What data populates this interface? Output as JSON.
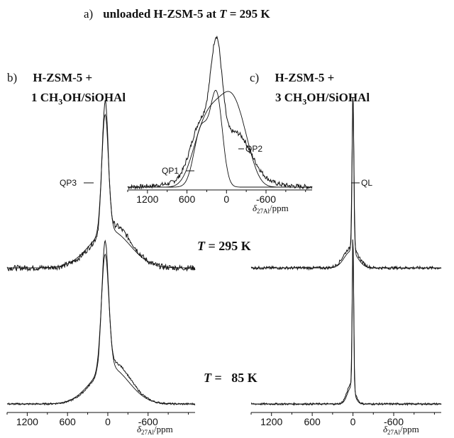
{
  "title": {
    "letter": "a)",
    "text_pre": "unloaded  H-ZSM-5 at ",
    "t_symbol": "T",
    "text_post": " = 295 K"
  },
  "panel_b": {
    "letter": "b)",
    "line1": "H-ZSM-5 +",
    "line2_pre": "1 CH",
    "line2_sub": "3",
    "line2_post": "OH/SiOHAl"
  },
  "panel_c": {
    "letter": "c)",
    "line1": "H-ZSM-5 +",
    "line2_pre": "3 CH",
    "line2_sub": "3",
    "line2_post": "OH/SiOHAl"
  },
  "temps": {
    "t_symbol": "T",
    "t295": " = 295 K",
    "t85": " =   85 K"
  },
  "axis": {
    "ticks": [
      "1200",
      "600",
      "0",
      "-600"
    ],
    "label_delta": "δ",
    "label_sub": "27Al",
    "label_unit": "/ppm"
  },
  "annotations": {
    "qp1": "QP1",
    "qp2": "QP2",
    "qp3": "QP3",
    "ql": "QL"
  },
  "colors": {
    "line": "#111111",
    "background": "#ffffff"
  },
  "chart_data": [
    {
      "panel": "a",
      "type": "line",
      "title": "unloaded  H-ZSM-5 at T = 295 K",
      "x_label": "δ27Al/ppm",
      "x_range": [
        1500,
        -1300
      ],
      "x_reversed": true,
      "x_ticks": [
        1200,
        600,
        0,
        -600
      ],
      "series": [
        {
          "role": "experimental",
          "components": [
            {
              "center": 150,
              "width": 90,
              "amp": 0.6
            },
            {
              "center": 400,
              "width": 200,
              "amp": 0.45
            },
            {
              "center": -200,
              "width": 250,
              "amp": 0.45
            }
          ]
        },
        {
          "role": "fit-QP1",
          "components": [
            {
              "center": 150,
              "width": 90,
              "amp": 0.6
            },
            {
              "center": 380,
              "width": 110,
              "amp": 0.4
            }
          ]
        },
        {
          "role": "fit-QP2",
          "components": [
            {
              "center": 80,
              "width": 420,
              "amp": 0.7
            }
          ]
        }
      ],
      "labels": [
        "QP1",
        "QP2"
      ]
    },
    {
      "panel": "b",
      "type": "line",
      "x_label": "δ27Al/ppm",
      "x_range": [
        1500,
        -1300
      ],
      "x_reversed": true,
      "x_ticks": [
        1200,
        600,
        0,
        -600
      ],
      "spectra": [
        {
          "temperature_K": 295,
          "label": "QP3",
          "peak_center": 40,
          "narrow_width": 45,
          "broad_width": 300
        },
        {
          "temperature_K": 85,
          "peak_center": 40,
          "narrow_width": 50,
          "broad_width": 280
        }
      ]
    },
    {
      "panel": "c",
      "type": "line",
      "x_label": "δ27Al/ppm",
      "x_range": [
        1500,
        -1300
      ],
      "x_reversed": true,
      "x_ticks": [
        1200,
        600,
        0,
        -600
      ],
      "spectra": [
        {
          "temperature_K": 295,
          "label": "QL",
          "peak_center": 0,
          "narrow_width": 12,
          "broad_width": 110
        },
        {
          "temperature_K": 85,
          "peak_center": 0,
          "narrow_width": 10,
          "broad_width": 60
        }
      ]
    }
  ]
}
